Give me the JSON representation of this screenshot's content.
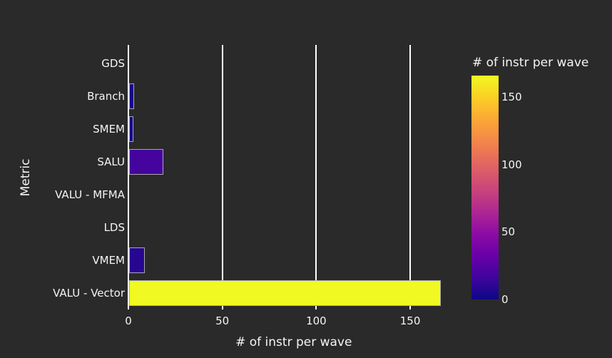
{
  "chart_data": {
    "type": "bar",
    "orientation": "horizontal",
    "xlabel": "# of instr per wave",
    "ylabel": "Metric",
    "categories": [
      "GDS",
      "Branch",
      "SMEM",
      "SALU",
      "VALU - MFMA",
      "LDS",
      "VMEM",
      "VALU - Vector"
    ],
    "values": [
      0,
      2.5,
      2.3,
      18.2,
      0,
      0,
      8.3,
      166
    ],
    "xticks": [
      0,
      50,
      100,
      150
    ],
    "xlim": [
      0,
      176
    ],
    "grid": true,
    "legend_position": "right",
    "colorbar": {
      "title": "# of instr per wave",
      "ticks": [
        0,
        50,
        100,
        150
      ],
      "min": 0,
      "max": 166,
      "colormap": "plasma"
    },
    "colors": {
      "background": "#2a2a2a",
      "gridline": "#ffffff",
      "text": "#f5f5f5",
      "bar_border": "#a8a8a8"
    }
  }
}
